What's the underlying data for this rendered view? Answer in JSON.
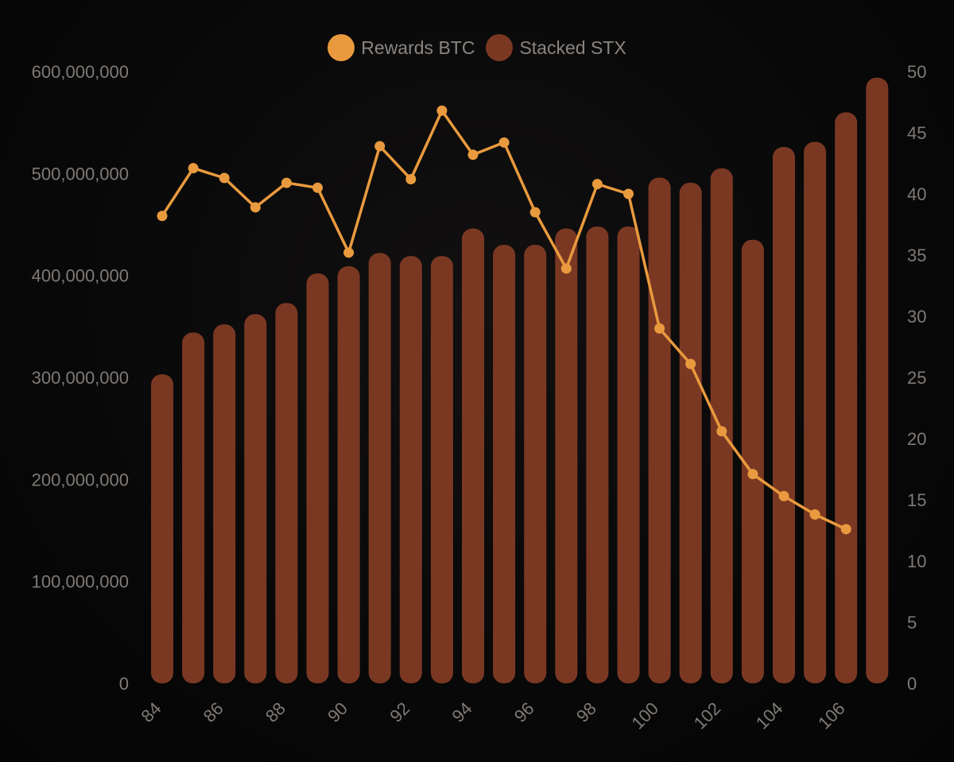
{
  "colors": {
    "line": "#e99a3e",
    "bar": "#7a3823",
    "tick": "#7f7a76",
    "background": "#080707"
  },
  "legend": {
    "items": [
      {
        "label": "Rewards BTC",
        "color": "#e99a3e"
      },
      {
        "label": "Stacked STX",
        "color": "#7a3823"
      }
    ]
  },
  "chart_data": {
    "type": "bar",
    "title": "",
    "categories": [
      84,
      85,
      86,
      87,
      88,
      89,
      90,
      91,
      92,
      93,
      94,
      95,
      96,
      97,
      98,
      99,
      100,
      101,
      102,
      103,
      104,
      105,
      106,
      107
    ],
    "x_tick_labels": [
      "84",
      "86",
      "88",
      "90",
      "92",
      "94",
      "96",
      "98",
      "100",
      "102",
      "104",
      "106"
    ],
    "series": [
      {
        "name": "Stacked STX",
        "type": "bar",
        "axis": "left",
        "values": [
          303000000,
          344000000,
          352000000,
          362000000,
          373000000,
          402000000,
          409000000,
          422000000,
          419000000,
          419000000,
          446000000,
          430000000,
          430000000,
          446000000,
          448000000,
          448000000,
          496000000,
          491000000,
          505000000,
          435000000,
          526000000,
          531000000,
          560000000,
          594000000
        ]
      },
      {
        "name": "Rewards BTC",
        "type": "line",
        "axis": "right",
        "values": [
          38.2,
          42.1,
          41.3,
          38.9,
          40.9,
          40.5,
          35.2,
          43.9,
          41.2,
          46.8,
          43.2,
          44.2,
          38.5,
          33.9,
          40.8,
          40.0,
          29.0,
          26.1,
          20.6,
          17.1,
          15.3,
          13.8,
          12.6,
          null
        ]
      }
    ],
    "y_left": {
      "ylim": [
        0,
        600000000
      ],
      "ticks": [
        "0",
        "100,000,000",
        "200,000,000",
        "300,000,000",
        "400,000,000",
        "500,000,000",
        "600,000,000"
      ]
    },
    "y_right": {
      "ylim": [
        0,
        50
      ],
      "ticks": [
        "0",
        "5",
        "10",
        "15",
        "20",
        "25",
        "30",
        "35",
        "40",
        "45",
        "50"
      ]
    },
    "legend_position": "top-center",
    "grid": false
  }
}
